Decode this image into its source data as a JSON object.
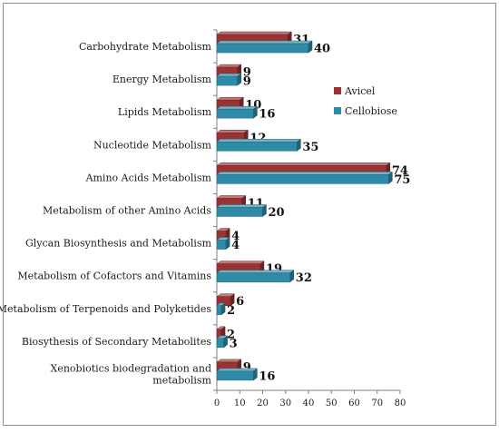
{
  "chart_data": {
    "type": "bar",
    "orientation": "horizontal",
    "categories": [
      "Carbohydrate Metabolism",
      "Energy Metabolism",
      "Lipids Metabolism",
      "Nucleotide Metabolism",
      "Amino Acids Metabolism",
      "Metabolism of other Amino Acids",
      "Glycan Biosynthesis and Metabolism",
      "Metabolism of Cofactors and Vitamins",
      "Metabolism of Terpenoids and Polyketides",
      "Biosythesis of Secondary Metabolites",
      [
        "Xenobiotics biodegradation and",
        "metabolism"
      ]
    ],
    "series": [
      {
        "name": "Avicel",
        "color": "#9b3232",
        "values": [
          31,
          9,
          10,
          12,
          74,
          11,
          4,
          19,
          6,
          2,
          9
        ]
      },
      {
        "name": "Cellobiose",
        "color": "#2e8aa6",
        "values": [
          40,
          9,
          16,
          35,
          75,
          20,
          4,
          32,
          2,
          3,
          16
        ]
      }
    ],
    "xlim": [
      0,
      80
    ],
    "xticks": [
      0,
      10,
      20,
      30,
      40,
      50,
      60,
      70,
      80
    ],
    "grid": false,
    "legend_position": "right",
    "bar_style": "3d"
  }
}
